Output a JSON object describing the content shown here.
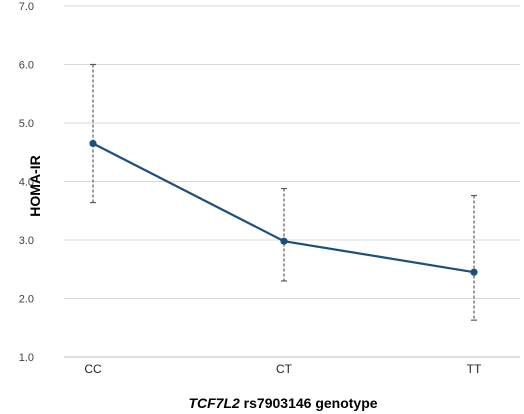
{
  "chart_data": {
    "type": "line",
    "categories": [
      "CC",
      "CT",
      "TT"
    ],
    "series": [
      {
        "values": [
          4.65,
          2.98,
          2.45
        ],
        "error_upper": [
          6.0,
          3.88,
          3.76
        ],
        "error_lower": [
          3.64,
          2.3,
          1.63
        ]
      }
    ],
    "ylabel": "HOMA-IR",
    "xlabel_italic": "TCF7L2",
    "xlabel_rest": " rs7903146 genotype",
    "ylim": [
      1.0,
      7.0
    ],
    "yticks": [
      "1.0",
      "2.0",
      "3.0",
      "4.0",
      "5.0",
      "6.0",
      "7.0"
    ],
    "grid": "horizontal",
    "colors": {
      "line": "#1f4e79",
      "error": "#595959",
      "grid": "#d9d9d9",
      "axis": "#bfbfbf"
    }
  }
}
